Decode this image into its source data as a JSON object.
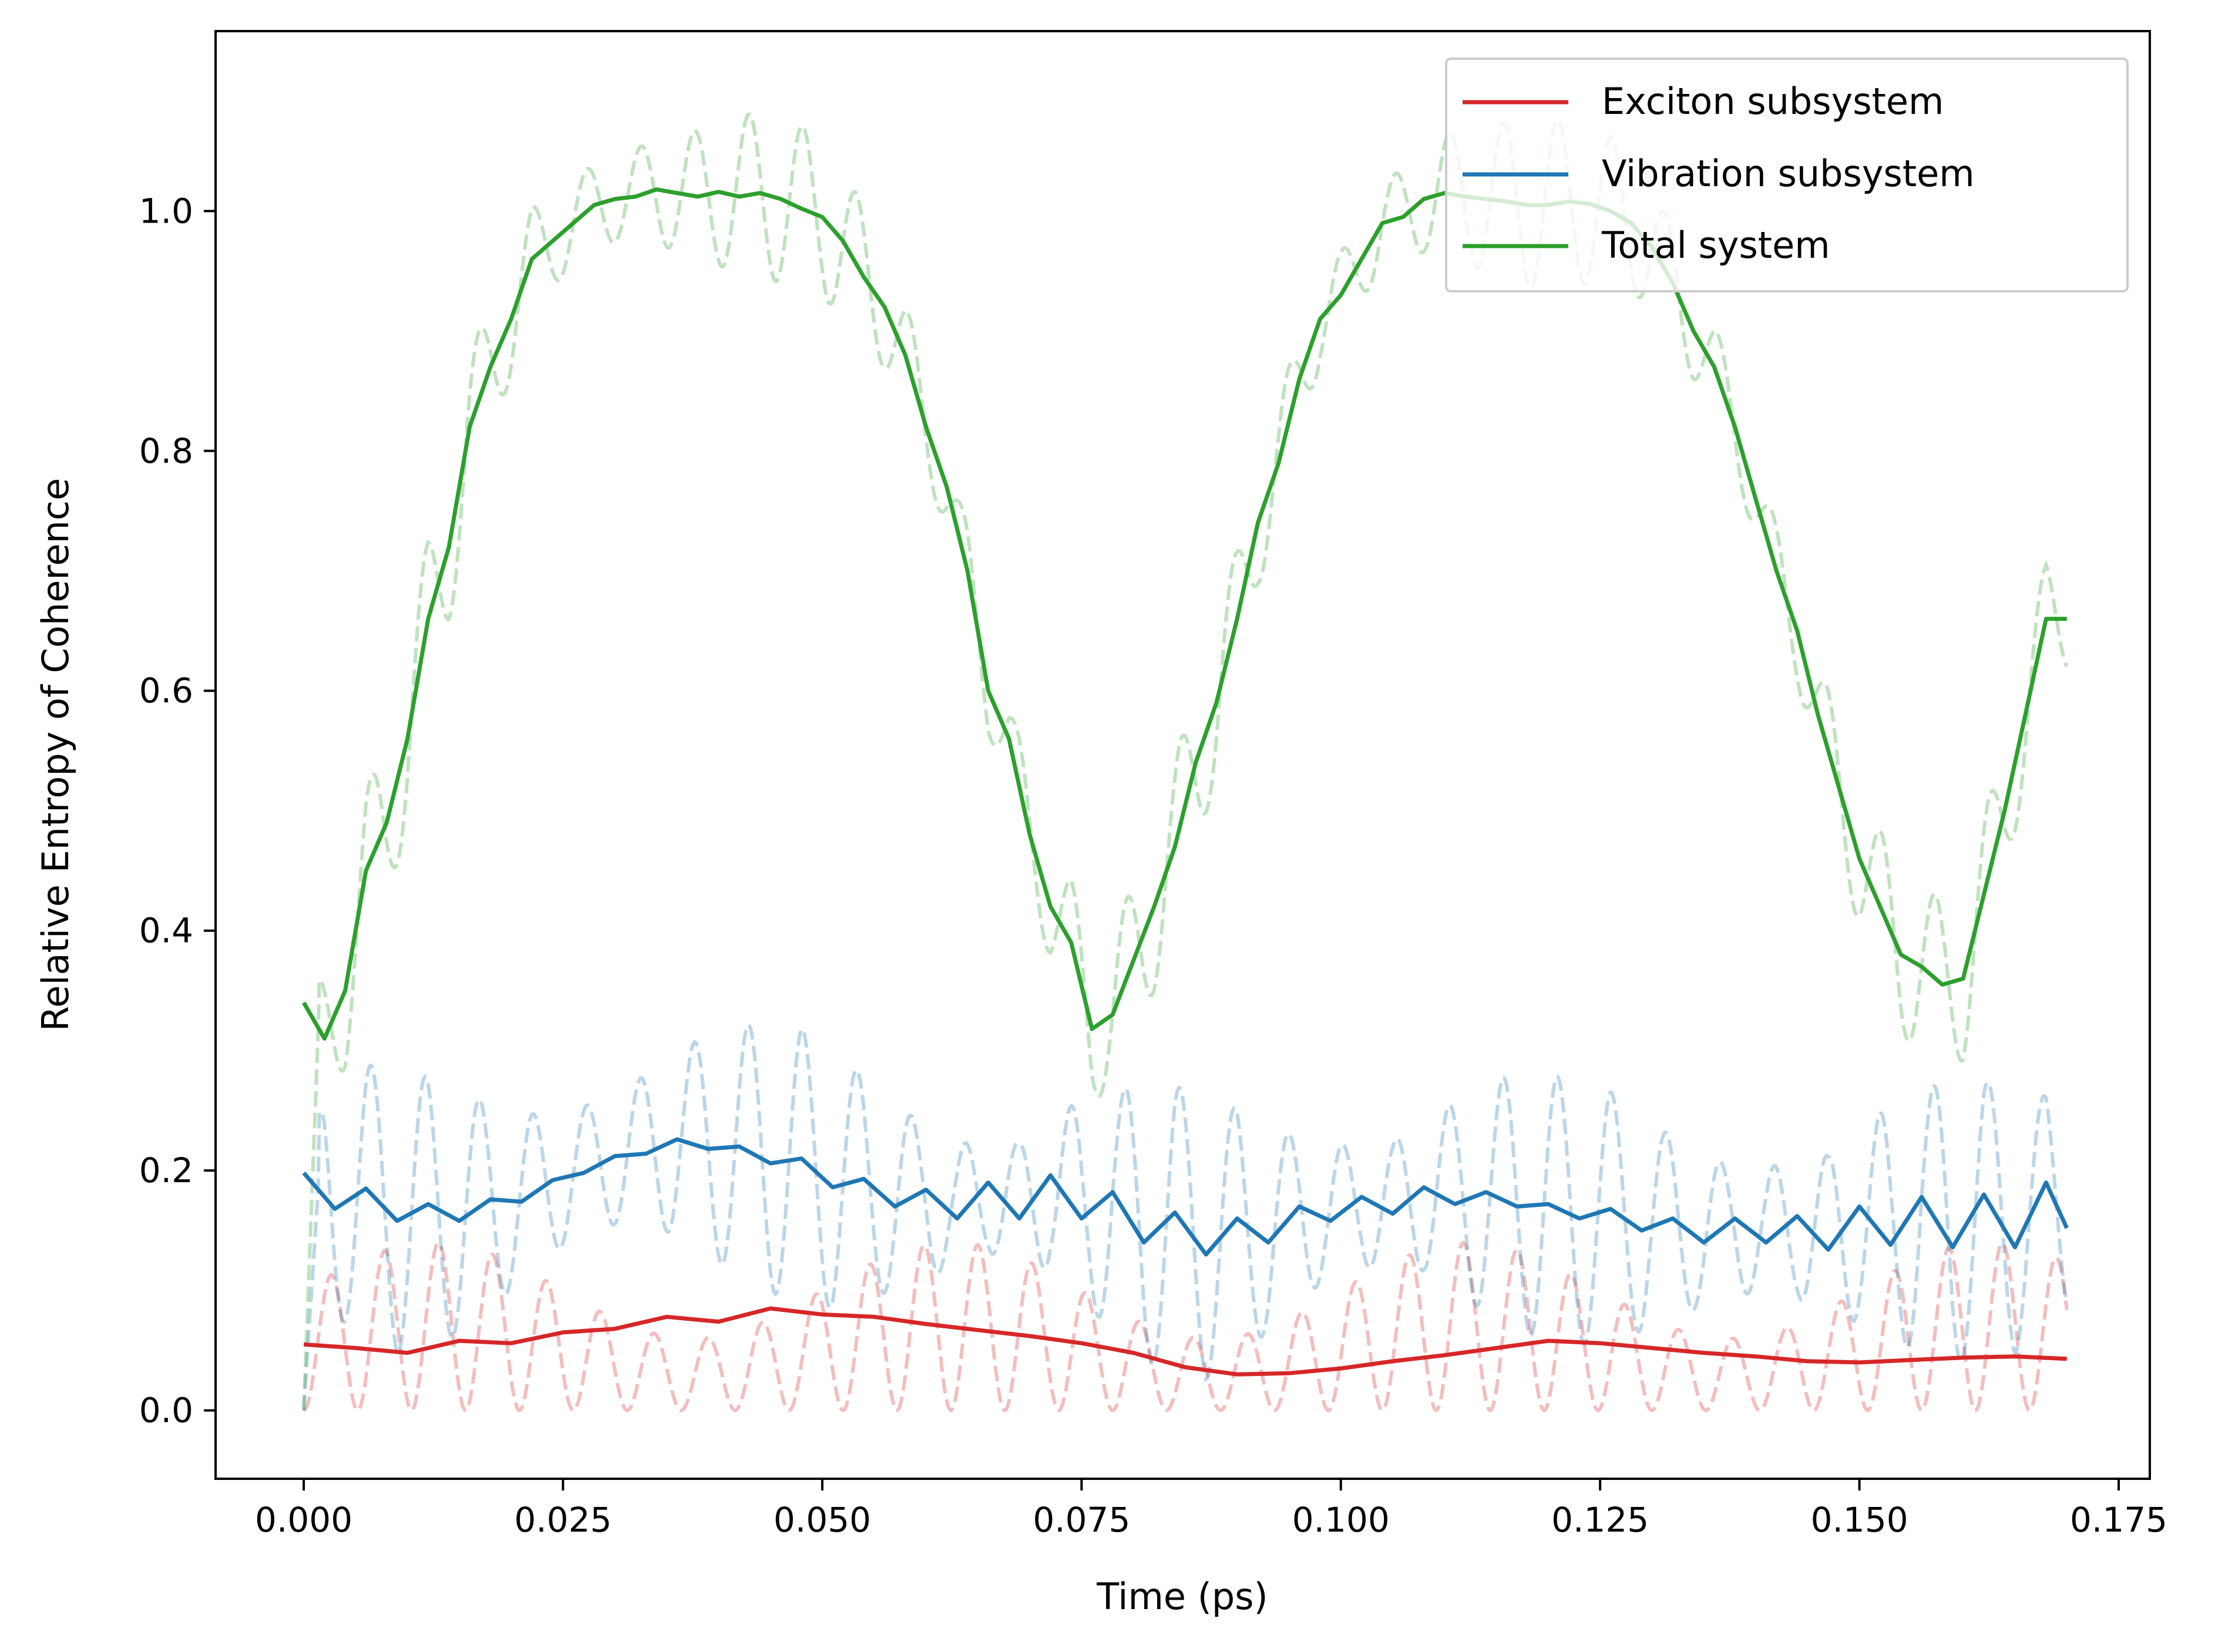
{
  "chart_data": {
    "type": "line",
    "title": "",
    "xlabel": "Time (ps)",
    "ylabel": "Relative Entropy of Coherence",
    "xlim": [
      -0.0085,
      0.178
    ],
    "ylim": [
      -0.057,
      1.15
    ],
    "xticks": [
      0.0,
      0.025,
      0.05,
      0.075,
      0.1,
      0.125,
      0.15,
      0.175
    ],
    "xtick_labels": [
      "0.000",
      "0.025",
      "0.050",
      "0.075",
      "0.100",
      "0.125",
      "0.150",
      "0.175"
    ],
    "yticks": [
      0.0,
      0.2,
      0.4,
      0.6,
      0.8,
      1.0
    ],
    "ytick_labels": [
      "0.0",
      "0.2",
      "0.4",
      "0.6",
      "0.8",
      "1.0"
    ],
    "grid": false,
    "legend_position": "top-right",
    "series": [
      {
        "name": "Exciton subsystem",
        "color": "#d62728",
        "style": "solid",
        "x": [
          0.0,
          0.005,
          0.01,
          0.015,
          0.02,
          0.025,
          0.03,
          0.035,
          0.04,
          0.045,
          0.05,
          0.055,
          0.06,
          0.065,
          0.07,
          0.075,
          0.08,
          0.085,
          0.09,
          0.095,
          0.1,
          0.105,
          0.11,
          0.115,
          0.12,
          0.125,
          0.13,
          0.135,
          0.14,
          0.145,
          0.15,
          0.155,
          0.16,
          0.165,
          0.17
        ],
        "y": [
          0.055,
          0.052,
          0.048,
          0.058,
          0.056,
          0.065,
          0.068,
          0.078,
          0.074,
          0.085,
          0.08,
          0.078,
          0.072,
          0.067,
          0.062,
          0.056,
          0.048,
          0.036,
          0.03,
          0.031,
          0.035,
          0.041,
          0.046,
          0.052,
          0.058,
          0.056,
          0.052,
          0.048,
          0.045,
          0.041,
          0.04,
          0.042,
          0.044,
          0.045,
          0.043
        ]
      },
      {
        "name": "Vibration subsystem",
        "color": "#1f77b4",
        "style": "solid",
        "x": [
          0.0,
          0.003,
          0.006,
          0.009,
          0.012,
          0.015,
          0.018,
          0.021,
          0.024,
          0.027,
          0.03,
          0.033,
          0.036,
          0.039,
          0.042,
          0.045,
          0.048,
          0.051,
          0.054,
          0.057,
          0.06,
          0.063,
          0.066,
          0.069,
          0.072,
          0.075,
          0.078,
          0.081,
          0.084,
          0.087,
          0.09,
          0.093,
          0.096,
          0.099,
          0.102,
          0.105,
          0.108,
          0.111,
          0.114,
          0.117,
          0.12,
          0.123,
          0.126,
          0.129,
          0.132,
          0.135,
          0.138,
          0.141,
          0.144,
          0.147,
          0.15,
          0.153,
          0.156,
          0.159,
          0.162,
          0.165,
          0.168,
          0.17
        ],
        "y": [
          0.198,
          0.168,
          0.185,
          0.158,
          0.172,
          0.158,
          0.176,
          0.174,
          0.192,
          0.198,
          0.212,
          0.214,
          0.226,
          0.218,
          0.22,
          0.206,
          0.21,
          0.186,
          0.193,
          0.17,
          0.184,
          0.16,
          0.19,
          0.16,
          0.196,
          0.16,
          0.182,
          0.14,
          0.165,
          0.13,
          0.16,
          0.14,
          0.17,
          0.158,
          0.178,
          0.164,
          0.186,
          0.172,
          0.182,
          0.17,
          0.172,
          0.16,
          0.168,
          0.15,
          0.16,
          0.14,
          0.16,
          0.14,
          0.162,
          0.134,
          0.17,
          0.138,
          0.178,
          0.136,
          0.18,
          0.136,
          0.19,
          0.152
        ]
      },
      {
        "name": "Total system",
        "color": "#2ca02c",
        "style": "solid",
        "x": [
          0.0,
          0.002,
          0.004,
          0.006,
          0.008,
          0.01,
          0.012,
          0.014,
          0.016,
          0.018,
          0.02,
          0.022,
          0.024,
          0.026,
          0.028,
          0.03,
          0.032,
          0.034,
          0.036,
          0.038,
          0.04,
          0.042,
          0.044,
          0.046,
          0.048,
          0.05,
          0.052,
          0.054,
          0.056,
          0.058,
          0.06,
          0.062,
          0.064,
          0.066,
          0.068,
          0.07,
          0.072,
          0.074,
          0.076,
          0.078,
          0.08,
          0.082,
          0.084,
          0.086,
          0.088,
          0.09,
          0.092,
          0.094,
          0.096,
          0.098,
          0.1,
          0.102,
          0.104,
          0.106,
          0.108,
          0.11,
          0.112,
          0.114,
          0.116,
          0.118,
          0.12,
          0.122,
          0.124,
          0.126,
          0.128,
          0.13,
          0.132,
          0.134,
          0.136,
          0.138,
          0.14,
          0.142,
          0.144,
          0.146,
          0.148,
          0.15,
          0.152,
          0.154,
          0.156,
          0.158,
          0.16,
          0.162,
          0.164,
          0.166,
          0.168,
          0.17
        ],
        "y": [
          0.34,
          0.31,
          0.35,
          0.45,
          0.49,
          0.56,
          0.66,
          0.72,
          0.82,
          0.87,
          0.91,
          0.96,
          0.975,
          0.99,
          1.005,
          1.01,
          1.012,
          1.018,
          1.015,
          1.012,
          1.016,
          1.012,
          1.015,
          1.01,
          1.002,
          0.995,
          0.975,
          0.945,
          0.92,
          0.88,
          0.82,
          0.77,
          0.7,
          0.6,
          0.56,
          0.48,
          0.42,
          0.39,
          0.318,
          0.33,
          0.375,
          0.42,
          0.47,
          0.54,
          0.59,
          0.66,
          0.74,
          0.79,
          0.86,
          0.91,
          0.93,
          0.96,
          0.99,
          0.995,
          1.01,
          1.015,
          1.012,
          1.01,
          1.008,
          1.005,
          1.005,
          1.008,
          1.006,
          1.0,
          0.99,
          0.97,
          0.94,
          0.9,
          0.87,
          0.82,
          0.76,
          0.7,
          0.65,
          0.58,
          0.52,
          0.46,
          0.42,
          0.38,
          0.37,
          0.355,
          0.36,
          0.43,
          0.5,
          0.58,
          0.66,
          0.66
        ]
      },
      {
        "color": "#d62728",
        "style": "dashed",
        "alpha": 0.3,
        "function": "sin2",
        "amplitude": 0.1,
        "period": 0.0052,
        "x_range": [
          0,
          0.17
        ]
      },
      {
        "color": "#1f77b4",
        "style": "dashed",
        "alpha": 0.3,
        "function": "oscillation",
        "amplitude": 0.11,
        "period": 0.0052,
        "x_range": [
          0,
          0.17
        ]
      },
      {
        "color": "#2ca02c",
        "style": "dashed",
        "alpha": 0.3,
        "function": "oscillation",
        "amplitude": 0.07,
        "period": 0.0052,
        "x_range": [
          0,
          0.17
        ]
      }
    ]
  }
}
